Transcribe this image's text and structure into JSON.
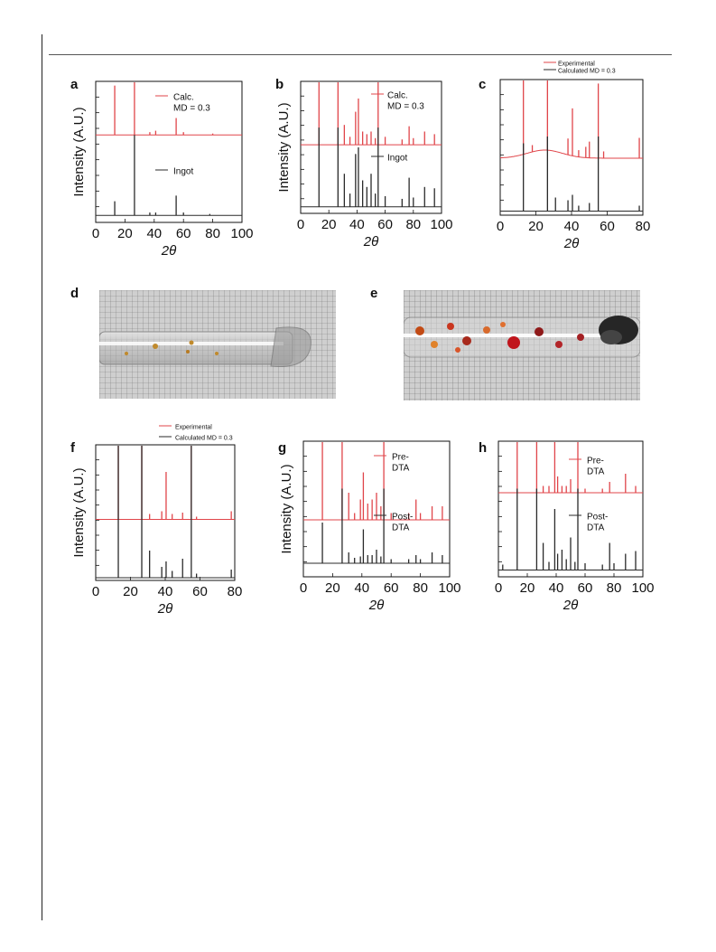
{
  "panels": {
    "a": {
      "label": "a",
      "y_axis_label": "Intensity (A.U.)",
      "x_axis_label": "2θ",
      "legend": [
        "Calc.\nMD = 0.3",
        "Ingot"
      ]
    },
    "b": {
      "label": "b",
      "y_axis_label": "Intensity (A.U.)",
      "x_axis_label": "2θ",
      "legend": [
        "Calc.\nMD = 0.3",
        "Ingot"
      ]
    },
    "c": {
      "label": "c",
      "x_axis_label": "2θ",
      "legend": [
        "Experimental",
        "Calculated MD = 0.3"
      ]
    },
    "d": {
      "label": "d"
    },
    "e": {
      "label": "e"
    },
    "f": {
      "label": "f",
      "y_axis_label": "Intensity (A.U.)",
      "x_axis_label": "2θ",
      "legend": [
        "Experimental",
        "Calculated MD = 0.3"
      ]
    },
    "g": {
      "label": "g",
      "y_axis_label": "Intensity (A.U.)",
      "x_axis_label": "2θ",
      "legend": [
        "Pre-\nDTA",
        "Post-\nDTA"
      ]
    },
    "h": {
      "label": "h",
      "x_axis_label": "2θ",
      "legend": [
        "Pre-\nDTA",
        "Post-\nDTA"
      ]
    }
  },
  "colors": {
    "red": "#e0454a",
    "black": "#2a2a2a"
  },
  "chart_data": [
    {
      "id": "a",
      "type": "line",
      "xlim": [
        0,
        100
      ],
      "xticks": [
        0,
        20,
        40,
        60,
        80,
        100
      ],
      "series": [
        {
          "name": "Calc.\nMD = 0.3",
          "color": "red",
          "baseline": 0.62,
          "peaks": [
            [
              13,
              0.35
            ],
            [
              26.5,
              0.6
            ],
            [
              37,
              0.02
            ],
            [
              41,
              0.03
            ],
            [
              55,
              0.12
            ],
            [
              60,
              0.02
            ],
            [
              80,
              0.01
            ]
          ]
        },
        {
          "name": "Ingot",
          "color": "black",
          "baseline": 0.05,
          "peaks": [
            [
              13,
              0.1
            ],
            [
              26.5,
              0.57
            ],
            [
              37,
              0.02
            ],
            [
              41,
              0.02
            ],
            [
              55,
              0.14
            ],
            [
              60,
              0.02
            ],
            [
              78,
              0.01
            ]
          ]
        }
      ]
    },
    {
      "id": "b",
      "type": "line",
      "xlim": [
        0,
        100
      ],
      "xticks": [
        0,
        20,
        40,
        60,
        80,
        100
      ],
      "series": [
        {
          "name": "Calc.\nMD = 0.3",
          "color": "red",
          "baseline": 0.52,
          "peaks": [
            [
              13,
              0.5
            ],
            [
              26.5,
              0.5
            ],
            [
              31,
              0.15
            ],
            [
              35,
              0.06
            ],
            [
              39,
              0.25
            ],
            [
              41,
              0.35
            ],
            [
              44,
              0.1
            ],
            [
              47,
              0.08
            ],
            [
              50,
              0.1
            ],
            [
              53,
              0.05
            ],
            [
              55,
              0.5
            ],
            [
              60,
              0.06
            ],
            [
              72,
              0.04
            ],
            [
              77,
              0.14
            ],
            [
              80,
              0.05
            ],
            [
              88,
              0.1
            ],
            [
              95,
              0.08
            ]
          ]
        },
        {
          "name": "Ingot",
          "color": "black",
          "baseline": 0.05,
          "peaks": [
            [
              13,
              0.6
            ],
            [
              26.5,
              0.6
            ],
            [
              31,
              0.25
            ],
            [
              35,
              0.1
            ],
            [
              39,
              0.4
            ],
            [
              41,
              0.45
            ],
            [
              44,
              0.2
            ],
            [
              47,
              0.15
            ],
            [
              50,
              0.25
            ],
            [
              53,
              0.1
            ],
            [
              55,
              0.6
            ],
            [
              60,
              0.08
            ],
            [
              72,
              0.06
            ],
            [
              77,
              0.22
            ],
            [
              80,
              0.07
            ],
            [
              88,
              0.15
            ],
            [
              95,
              0.14
            ]
          ]
        }
      ]
    },
    {
      "id": "c",
      "type": "line",
      "xlim": [
        0,
        80
      ],
      "xticks": [
        0,
        20,
        40,
        60,
        80
      ],
      "series": [
        {
          "name": "Experimental",
          "color": "red",
          "baseline": 0.42,
          "hump": true,
          "peaks": [
            [
              13,
              0.55
            ],
            [
              18,
              0.05
            ],
            [
              26.5,
              0.55
            ],
            [
              38,
              0.12
            ],
            [
              40.5,
              0.35
            ],
            [
              44,
              0.05
            ],
            [
              48,
              0.08
            ],
            [
              50,
              0.12
            ],
            [
              55,
              0.55
            ],
            [
              58,
              0.05
            ],
            [
              78,
              0.15
            ]
          ]
        },
        {
          "name": "Calculated MD = 0.3",
          "color": "black",
          "baseline": 0.03,
          "peaks": [
            [
              13,
              0.5
            ],
            [
              26.5,
              0.55
            ],
            [
              31,
              0.1
            ],
            [
              38,
              0.08
            ],
            [
              40.5,
              0.12
            ],
            [
              44,
              0.04
            ],
            [
              50,
              0.06
            ],
            [
              55,
              0.55
            ],
            [
              78,
              0.04
            ]
          ]
        }
      ]
    },
    {
      "id": "f",
      "type": "line",
      "xlim": [
        0,
        80
      ],
      "xticks": [
        0,
        20,
        40,
        60,
        80
      ],
      "series": [
        {
          "name": "Experimental",
          "color": "red",
          "baseline": 0.45,
          "peaks": [
            [
              13,
              0.55
            ],
            [
              26.5,
              0.55
            ],
            [
              31,
              0.04
            ],
            [
              38,
              0.06
            ],
            [
              40.5,
              0.35
            ],
            [
              44,
              0.04
            ],
            [
              50,
              0.05
            ],
            [
              55,
              0.55
            ],
            [
              58,
              0.02
            ],
            [
              78,
              0.06
            ]
          ]
        },
        {
          "name": "Calculated MD = 0.3",
          "color": "black",
          "baseline": 0.02,
          "peaks": [
            [
              13,
              0.98
            ],
            [
              26.5,
              0.98
            ],
            [
              31,
              0.2
            ],
            [
              38,
              0.08
            ],
            [
              40.5,
              0.12
            ],
            [
              44,
              0.05
            ],
            [
              50,
              0.14
            ],
            [
              55,
              0.98
            ],
            [
              58,
              0.03
            ],
            [
              78,
              0.06
            ]
          ]
        }
      ]
    },
    {
      "id": "g",
      "type": "line",
      "xlim": [
        0,
        100
      ],
      "xticks": [
        0,
        20,
        40,
        60,
        80,
        100
      ],
      "series": [
        {
          "name": "Pre-\nDTA",
          "color": "red",
          "baseline": 0.42,
          "peaks": [
            [
              13,
              0.6
            ],
            [
              26.5,
              0.6
            ],
            [
              31,
              0.2
            ],
            [
              35,
              0.05
            ],
            [
              39,
              0.15
            ],
            [
              41,
              0.35
            ],
            [
              44,
              0.12
            ],
            [
              47,
              0.15
            ],
            [
              50,
              0.2
            ],
            [
              53,
              0.1
            ],
            [
              55,
              0.6
            ],
            [
              60,
              0.05
            ],
            [
              72,
              0.05
            ],
            [
              77,
              0.15
            ],
            [
              80,
              0.05
            ],
            [
              88,
              0.1
            ],
            [
              95,
              0.1
            ]
          ]
        },
        {
          "name": "Post-\nDTA",
          "color": "black",
          "baseline": 0.1,
          "peaks": [
            [
              13,
              0.3
            ],
            [
              26.5,
              0.55
            ],
            [
              31,
              0.08
            ],
            [
              35,
              0.04
            ],
            [
              39,
              0.05
            ],
            [
              41,
              0.25
            ],
            [
              44,
              0.06
            ],
            [
              47,
              0.06
            ],
            [
              50,
              0.1
            ],
            [
              53,
              0.05
            ],
            [
              55,
              0.55
            ],
            [
              60,
              0.03
            ],
            [
              72,
              0.03
            ],
            [
              77,
              0.06
            ],
            [
              80,
              0.03
            ],
            [
              88,
              0.08
            ],
            [
              95,
              0.06
            ]
          ]
        }
      ]
    },
    {
      "id": "h",
      "type": "line",
      "xlim": [
        0,
        100
      ],
      "xticks": [
        0,
        20,
        40,
        60,
        80,
        100
      ],
      "series": [
        {
          "name": "Pre-\nDTA",
          "color": "red",
          "baseline": 0.62,
          "peaks": [
            [
              13,
              0.38
            ],
            [
              26.5,
              0.38
            ],
            [
              31,
              0.05
            ],
            [
              35,
              0.05
            ],
            [
              39,
              0.38
            ],
            [
              41,
              0.12
            ],
            [
              44,
              0.05
            ],
            [
              47,
              0.05
            ],
            [
              50,
              0.1
            ],
            [
              55,
              0.38
            ],
            [
              60,
              0.03
            ],
            [
              72,
              0.03
            ],
            [
              77,
              0.08
            ],
            [
              88,
              0.14
            ],
            [
              95,
              0.05
            ]
          ]
        },
        {
          "name": "Post-\nDTA",
          "color": "black",
          "baseline": 0.05,
          "peaks": [
            [
              3,
              0.04
            ],
            [
              13,
              0.6
            ],
            [
              26.5,
              0.6
            ],
            [
              31,
              0.2
            ],
            [
              35,
              0.06
            ],
            [
              39,
              0.45
            ],
            [
              41,
              0.12
            ],
            [
              44,
              0.15
            ],
            [
              47,
              0.08
            ],
            [
              50,
              0.24
            ],
            [
              53,
              0.06
            ],
            [
              55,
              0.6
            ],
            [
              60,
              0.05
            ],
            [
              72,
              0.04
            ],
            [
              77,
              0.2
            ],
            [
              80,
              0.05
            ],
            [
              88,
              0.12
            ],
            [
              95,
              0.14
            ]
          ]
        }
      ]
    }
  ]
}
